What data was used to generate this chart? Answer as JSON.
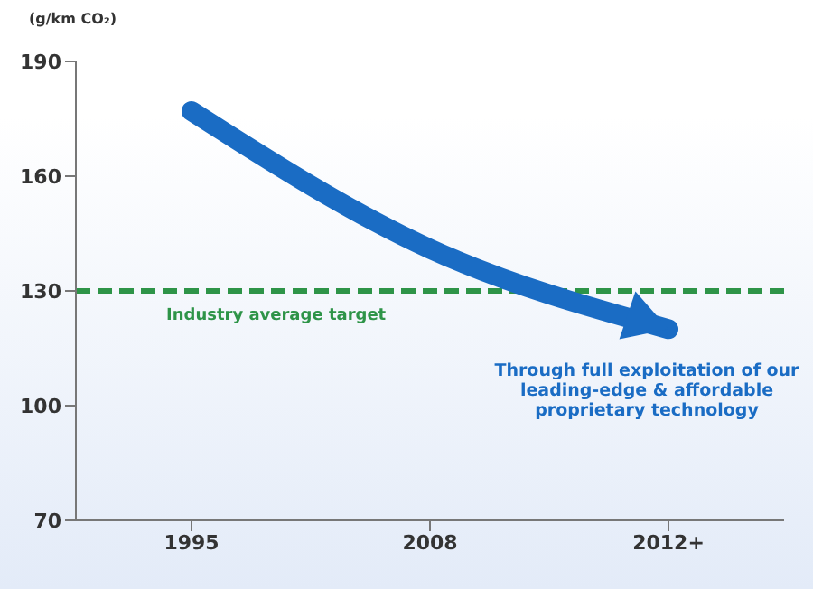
{
  "chart_data": {
    "type": "line",
    "ylabel": "(g/km CO₂)",
    "categories": [
      "1995",
      "2008",
      "2012+"
    ],
    "series": [
      {
        "color": "#1a6cc4",
        "values": [
          177,
          141,
          120
        ]
      }
    ],
    "ylim": [
      70,
      190
    ],
    "yticks": [
      70,
      100,
      130,
      160,
      190
    ],
    "ref_lines": [
      {
        "axis": "y",
        "value": 130,
        "label": "Industry average target",
        "color": "#2e9448",
        "line_style": "dashed"
      }
    ],
    "annotations": [
      "Through full exploitation of our leading-edge & affordable proprietary technology"
    ],
    "marker": "none"
  }
}
